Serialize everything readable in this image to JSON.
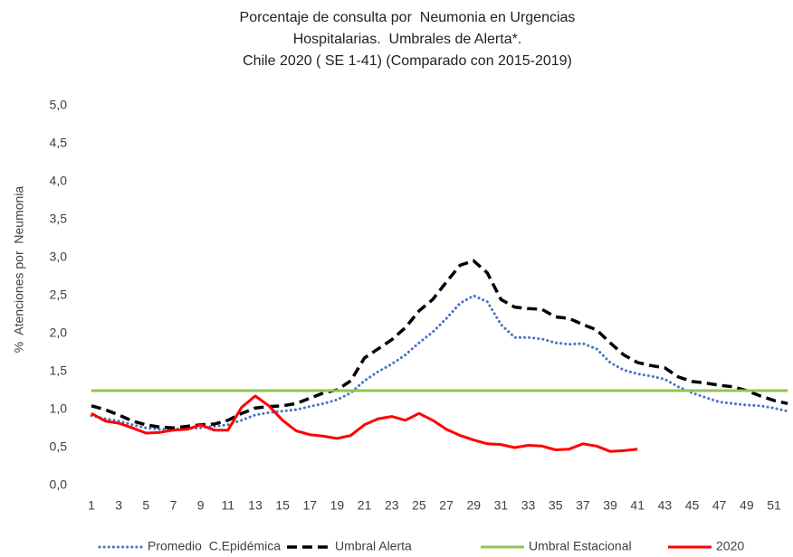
{
  "chart_data": {
    "type": "line",
    "title": [
      "Porcentaje de consulta por  Neumonia en Urgencias",
      "Hospitalarias.  Umbrales de Alerta*.",
      "Chile 2020 ( SE 1-41) (Comparado con 2015-2019)"
    ],
    "y_label": "%  Atenciones por  Neumonia",
    "categories": [
      "1",
      null,
      "3",
      null,
      "5",
      null,
      "7",
      null,
      "9",
      null,
      "11",
      null,
      "13",
      null,
      "15",
      null,
      "17",
      null,
      "19",
      null,
      "21",
      null,
      "23",
      null,
      "25",
      null,
      "27",
      null,
      "29",
      null,
      "31",
      null,
      "33",
      null,
      "35",
      null,
      "37",
      null,
      "39",
      null,
      "41",
      null,
      "43",
      null,
      "45",
      null,
      "47",
      null,
      "49",
      null,
      "51",
      null
    ],
    "ylim": [
      0,
      5
    ],
    "yticks": [
      {
        "value": 0,
        "label": "0,0"
      },
      {
        "value": 0.5,
        "label": "0,5"
      },
      {
        "value": 1,
        "label": "1,0"
      },
      {
        "value": 1.5,
        "label": "1,5"
      },
      {
        "value": 2,
        "label": "2,0"
      },
      {
        "value": 2.5,
        "label": "2,5"
      },
      {
        "value": 3,
        "label": "3,0"
      },
      {
        "value": 3.5,
        "label": "3,5"
      },
      {
        "value": 4,
        "label": "4,0"
      },
      {
        "value": 4.5,
        "label": "4,5"
      },
      {
        "value": 5,
        "label": "5,0"
      }
    ],
    "grid": false,
    "series": [
      {
        "name": "Promedio  C.Epidémica",
        "color": "#4472c4",
        "style": "dotted",
        "values": [
          0.92,
          0.88,
          0.85,
          0.8,
          0.76,
          0.74,
          0.74,
          0.75,
          0.76,
          0.78,
          0.8,
          0.86,
          0.93,
          0.96,
          0.98,
          1.0,
          1.04,
          1.08,
          1.13,
          1.22,
          1.38,
          1.5,
          1.6,
          1.72,
          1.88,
          2.02,
          2.2,
          2.4,
          2.5,
          2.42,
          2.12,
          1.95,
          1.95,
          1.93,
          1.88,
          1.86,
          1.87,
          1.8,
          1.62,
          1.52,
          1.47,
          1.44,
          1.4,
          1.3,
          1.22,
          1.16,
          1.1,
          1.08,
          1.06,
          1.05,
          1.02,
          0.98
        ]
      },
      {
        "name": "Umbral Alerta",
        "color": "#000000",
        "style": "dashed",
        "values": [
          1.05,
          1.0,
          0.93,
          0.85,
          0.8,
          0.77,
          0.76,
          0.78,
          0.8,
          0.81,
          0.86,
          0.95,
          1.02,
          1.04,
          1.05,
          1.08,
          1.15,
          1.22,
          1.26,
          1.38,
          1.68,
          1.8,
          1.92,
          2.08,
          2.3,
          2.45,
          2.68,
          2.9,
          2.96,
          2.8,
          2.45,
          2.35,
          2.33,
          2.32,
          2.22,
          2.2,
          2.12,
          2.05,
          1.88,
          1.72,
          1.62,
          1.58,
          1.55,
          1.43,
          1.37,
          1.35,
          1.32,
          1.3,
          1.25,
          1.18,
          1.12,
          1.08
        ]
      },
      {
        "name": "Umbral Estacional",
        "color": "#92c353",
        "style": "solid",
        "values": [
          1.25,
          1.25,
          1.25,
          1.25,
          1.25,
          1.25,
          1.25,
          1.25,
          1.25,
          1.25,
          1.25,
          1.25,
          1.25,
          1.25,
          1.25,
          1.25,
          1.25,
          1.25,
          1.25,
          1.25,
          1.25,
          1.25,
          1.25,
          1.25,
          1.25,
          1.25,
          1.25,
          1.25,
          1.25,
          1.25,
          1.25,
          1.25,
          1.25,
          1.25,
          1.25,
          1.25,
          1.25,
          1.25,
          1.25,
          1.25,
          1.25,
          1.25,
          1.25,
          1.25,
          1.25,
          1.25,
          1.25,
          1.25,
          1.25,
          1.25,
          1.25,
          1.25
        ]
      },
      {
        "name": "2020",
        "color": "#ff0000",
        "style": "solid",
        "values": [
          0.95,
          0.85,
          0.82,
          0.76,
          0.69,
          0.7,
          0.73,
          0.74,
          0.8,
          0.73,
          0.73,
          1.03,
          1.18,
          1.05,
          0.86,
          0.72,
          0.67,
          0.65,
          0.62,
          0.66,
          0.8,
          0.88,
          0.91,
          0.86,
          0.95,
          0.86,
          0.74,
          0.66,
          0.6,
          0.55,
          0.54,
          0.5,
          0.53,
          0.52,
          0.47,
          0.48,
          0.55,
          0.52,
          0.45,
          0.46,
          0.48,
          null,
          null,
          null,
          null,
          null,
          null,
          null,
          null,
          null,
          null,
          null
        ]
      }
    ]
  }
}
